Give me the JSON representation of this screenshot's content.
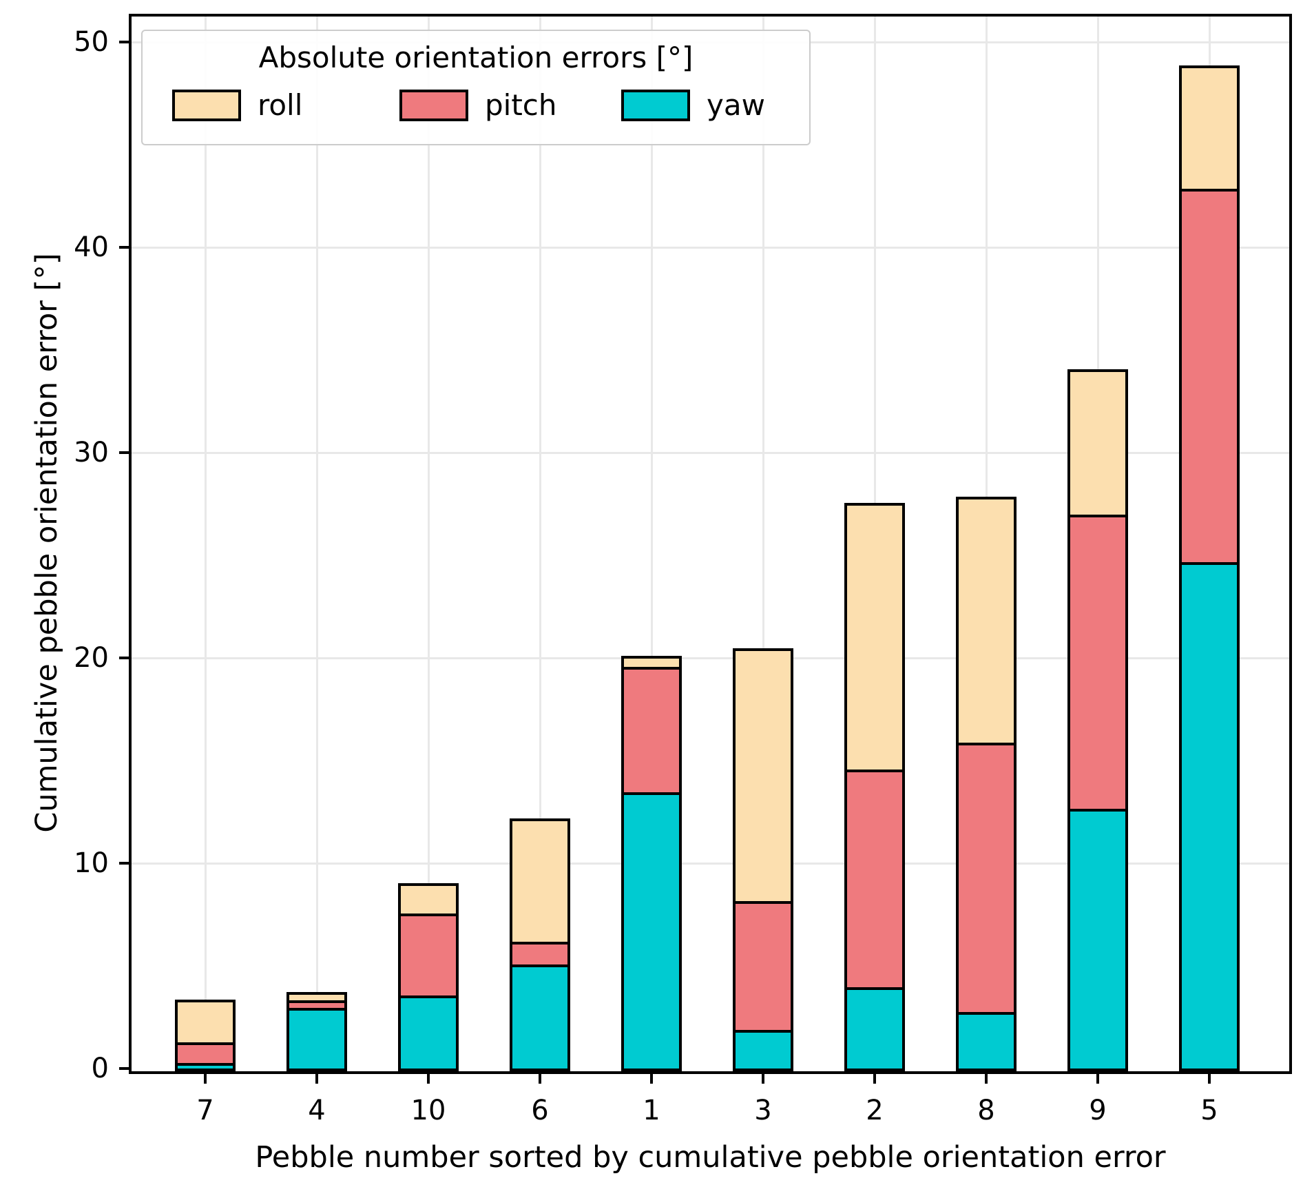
{
  "axes": {
    "ylabel": "Cumulative pebble orientation error [°]",
    "xlabel": "Pebble number sorted by cumulative pebble orientation error",
    "yticks": [
      0,
      10,
      20,
      30,
      40,
      50
    ]
  },
  "legend": {
    "title": "Absolute orientation errors [°]",
    "entries": [
      {
        "label": "roll",
        "color": "#FCDFAF"
      },
      {
        "label": "pitch",
        "color": "#EF7A7E"
      },
      {
        "label": "yaw",
        "color": "#00CBD1"
      }
    ]
  },
  "chart_data": {
    "type": "bar",
    "stacked": true,
    "title": "Absolute orientation errors [°]",
    "xlabel": "Pebble number sorted by cumulative pebble orientation error",
    "ylabel": "Cumulative pebble orientation error [°]",
    "categories": [
      "7",
      "4",
      "10",
      "6",
      "1",
      "3",
      "2",
      "8",
      "9",
      "5"
    ],
    "series": [
      {
        "name": "yaw",
        "color": "#00CBD1",
        "values": [
          0.4,
          3.1,
          3.7,
          5.2,
          13.6,
          2.0,
          4.1,
          2.9,
          12.8,
          24.8
        ]
      },
      {
        "name": "pitch",
        "color": "#EF7A7E",
        "values": [
          1.0,
          0.35,
          4.0,
          1.1,
          6.1,
          6.3,
          10.6,
          13.1,
          14.3,
          18.2
        ]
      },
      {
        "name": "roll",
        "color": "#FCDFAF",
        "values": [
          2.1,
          0.4,
          1.45,
          6.0,
          0.55,
          12.3,
          13.0,
          12.0,
          7.1,
          6.0
        ]
      }
    ],
    "totals": [
      3.5,
      3.85,
      9.15,
      12.3,
      20.25,
      20.6,
      27.7,
      28.0,
      34.2,
      49.0
    ],
    "ylim": [
      0,
      51.45
    ],
    "grid": true,
    "legend_position": "upper left",
    "bar_edge_color": "#000000",
    "grid_color": "#e8e8e8"
  }
}
